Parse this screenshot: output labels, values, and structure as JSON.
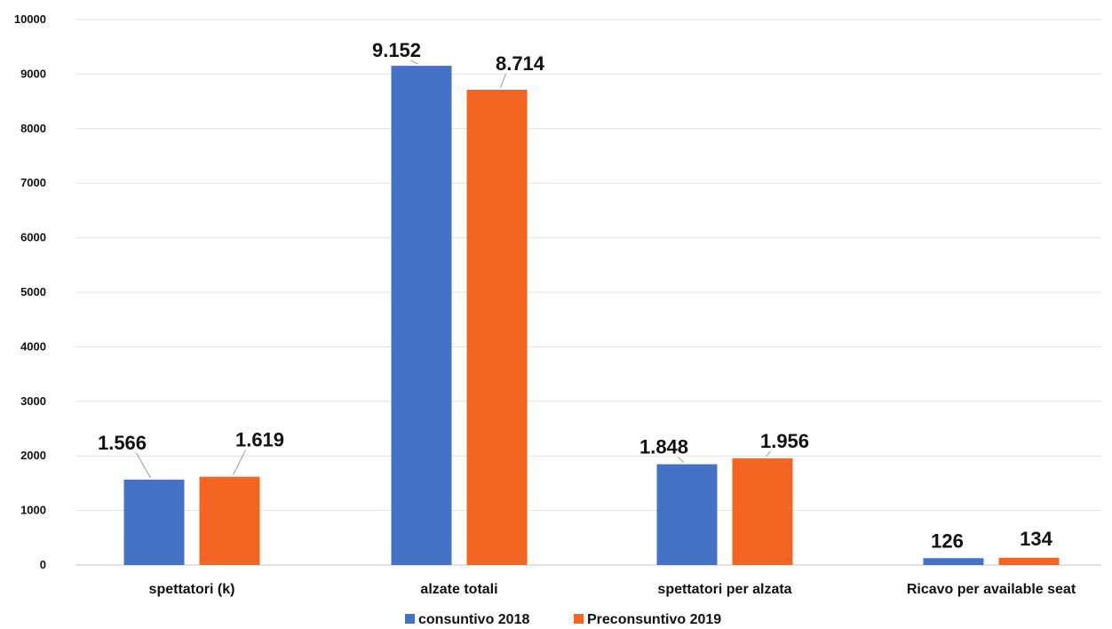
{
  "chart_data": {
    "type": "bar",
    "categories": [
      "spettatori (k)",
      "alzate totali",
      "spettatori per alzata",
      "Ricavo per available seat"
    ],
    "series": [
      {
        "name": "consuntivo 2018",
        "values": [
          1566,
          9152,
          1848,
          126
        ],
        "labels": [
          "1.566",
          "9.152",
          "1.848",
          "126"
        ],
        "color": "#4472c4"
      },
      {
        "name": "Preconsuntivo 2019",
        "values": [
          1619,
          8714,
          1956,
          134
        ],
        "labels": [
          "1.619",
          "8.714",
          "1.956",
          "134"
        ],
        "color": "#f26522"
      }
    ],
    "ylim": [
      0,
      10000
    ],
    "yticks": [
      0,
      1000,
      2000,
      3000,
      4000,
      5000,
      6000,
      7000,
      8000,
      9000,
      10000
    ],
    "grid": true,
    "legend": "bottom-center",
    "title": "",
    "xlabel": "",
    "ylabel": ""
  }
}
